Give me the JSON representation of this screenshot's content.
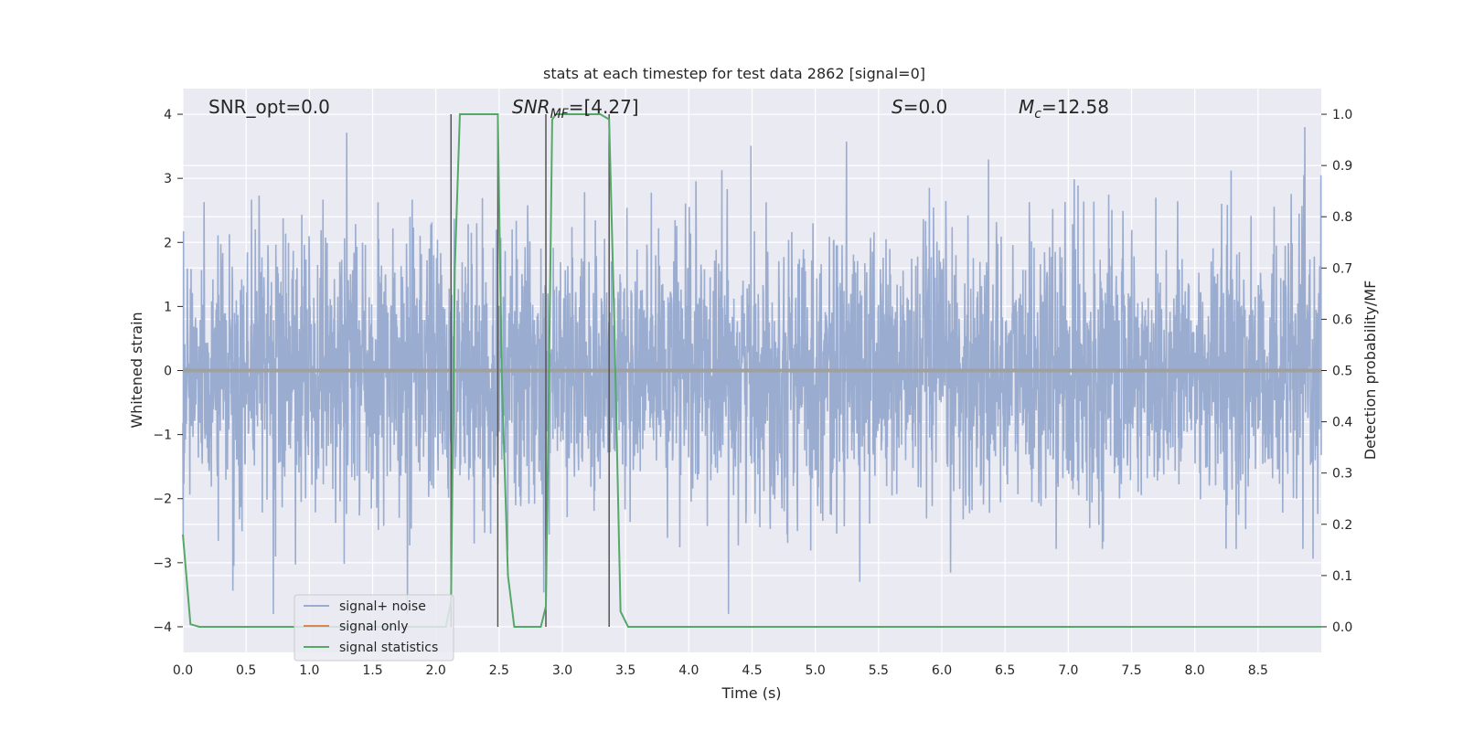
{
  "chart_data": {
    "type": "line",
    "title": "stats at each timestep for test data 2862 [signal=0]",
    "xlabel": "Time (s)",
    "ylabel_left": "Whitened strain",
    "ylabel_right": "Detection probability/MF",
    "xlim": [
      0.0,
      9.0
    ],
    "ylim_left": [
      -4.4,
      4.4
    ],
    "ylim_right": [
      -0.05,
      1.05
    ],
    "xticks": [
      "0.0",
      "0.5",
      "1.0",
      "1.5",
      "2.0",
      "2.5",
      "3.0",
      "3.5",
      "4.0",
      "4.5",
      "5.0",
      "5.5",
      "6.0",
      "6.5",
      "7.0",
      "7.5",
      "8.0",
      "8.5"
    ],
    "xtick_values": [
      0.0,
      0.5,
      1.0,
      1.5,
      2.0,
      2.5,
      3.0,
      3.5,
      4.0,
      4.5,
      5.0,
      5.5,
      6.0,
      6.5,
      7.0,
      7.5,
      8.0,
      8.5
    ],
    "yticks_left": [
      "−4",
      "−3",
      "−2",
      "−1",
      "0",
      "1",
      "2",
      "3",
      "4"
    ],
    "ytick_values_left": [
      -4,
      -3,
      -2,
      -1,
      0,
      1,
      2,
      3,
      4
    ],
    "yticks_right": [
      "0.0",
      "0.1",
      "0.2",
      "0.3",
      "0.4",
      "0.5",
      "0.6",
      "0.7",
      "0.8",
      "0.9",
      "1.0"
    ],
    "ytick_values_right": [
      0.0,
      0.1,
      0.2,
      0.3,
      0.4,
      0.5,
      0.6,
      0.7,
      0.8,
      0.9,
      1.0
    ],
    "grid": true,
    "annotations": {
      "snr_opt": "SNR_opt=0.0",
      "snr_mf_sym": "SNR",
      "snr_mf_sub": "MF",
      "snr_mf_val": "=[4.27]",
      "s_sym": "S",
      "s_val": "=0.0",
      "mc_sym": "M",
      "mc_sub": "c",
      "mc_val": "=12.58"
    },
    "legend": {
      "position": "lower-left",
      "entries": [
        "signal+ noise",
        "signal only",
        "signal statistics"
      ]
    },
    "colors": {
      "noise": "#9aaccf",
      "signal": "#dd8452",
      "stats": "#55a868",
      "vline": "#555555",
      "zero": "#a0a0a0",
      "background": "#eaeaf2"
    },
    "vlines_x": [
      2.12,
      2.49,
      2.87,
      3.37
    ],
    "series": [
      {
        "name": "signal statistics",
        "axis": "right",
        "x": [
          0.0,
          0.06,
          0.13,
          0.5,
          1.0,
          1.5,
          2.0,
          2.08,
          2.12,
          2.15,
          2.19,
          2.25,
          2.3,
          2.49,
          2.52,
          2.57,
          2.62,
          2.75,
          2.83,
          2.87,
          2.89,
          2.92,
          2.95,
          3.0,
          3.1,
          3.2,
          3.3,
          3.37,
          3.41,
          3.46,
          3.52,
          4.0,
          5.0,
          6.0,
          7.0,
          8.0,
          9.0
        ],
        "values": [
          0.18,
          0.005,
          0.0,
          0.0,
          0.0,
          0.0,
          0.0,
          0.0,
          0.05,
          0.7,
          1.0,
          1.0,
          1.0,
          1.0,
          0.5,
          0.1,
          0.0,
          0.0,
          0.0,
          0.04,
          0.4,
          0.99,
          1.0,
          1.0,
          1.0,
          1.0,
          1.0,
          0.99,
          0.6,
          0.03,
          0.0,
          0.0,
          0.0,
          0.0,
          0.0,
          0.0,
          0.0
        ]
      },
      {
        "name": "signal only",
        "axis": "left",
        "x": [
          0.0,
          9.0
        ],
        "values": [
          0.0,
          0.0
        ]
      },
      {
        "name": "signal+ noise",
        "axis": "left",
        "description_values": "dense whitened noise, roughly within ±2.5 with spikes to ±3.8",
        "x_range": [
          0.0,
          9.0
        ],
        "amplitude_peak": 3.8
      }
    ]
  }
}
